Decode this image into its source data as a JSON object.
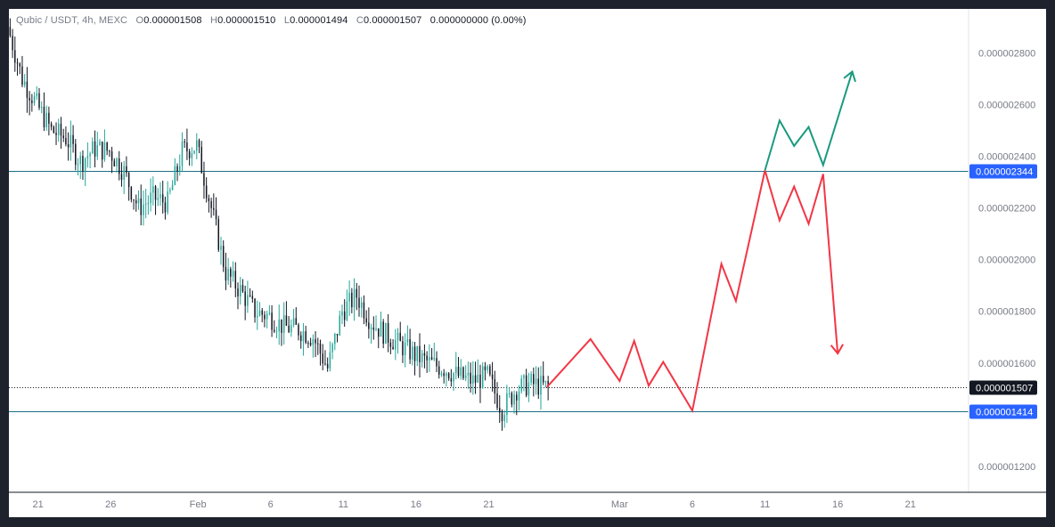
{
  "legend": {
    "symbol": "Qubic / USDT, 4h, MEXC",
    "o_key": "O",
    "o_val": "0.000001508",
    "h_key": "H",
    "h_val": "0.000001510",
    "l_key": "L",
    "l_val": "0.000001494",
    "c_key": "C",
    "c_val": "0.000001507",
    "change": "0.000000000 (0.00%)"
  },
  "colors": {
    "up": "#26a69a",
    "down": "#131722",
    "bullish_projection": "#1a9a7f",
    "bearish_projection": "#f23645",
    "level_line": "#1b6f86",
    "badge_blue": "#2962ff",
    "badge_dark": "#131722"
  },
  "chart_data": {
    "type": "candlestick",
    "pair": "Qubic / USDT",
    "timeframe": "4h",
    "exchange": "MEXC",
    "ylim": [
      1.1e-06,
      2.97e-06
    ],
    "y_ticks": [
      "0.000001200",
      "0.000001600",
      "0.000001800",
      "0.000002000",
      "0.000002200",
      "0.000002400",
      "0.000002600",
      "0.000002800"
    ],
    "y_tick_values": [
      1.2e-06,
      1.6e-06,
      1.8e-06,
      2e-06,
      2.2e-06,
      2.4e-06,
      2.6e-06,
      2.8e-06
    ],
    "x_ticks": [
      "21",
      "26",
      "Feb",
      "6",
      "11",
      "16",
      "21",
      "Mar",
      "6",
      "11",
      "16",
      "21"
    ],
    "x_tick_dates": [
      "2024-01-21",
      "2024-01-26",
      "2024-02-01",
      "2024-02-06",
      "2024-02-11",
      "2024-02-16",
      "2024-02-21",
      "2024-03-01",
      "2024-03-06",
      "2024-03-11",
      "2024-03-16",
      "2024-03-21"
    ],
    "x_range": [
      "2024-01-19",
      "2024-03-25"
    ],
    "price_path": [
      [
        "2024-01-19",
        2.9e-06
      ],
      [
        "2024-01-20",
        2.7e-06
      ],
      [
        "2024-01-21",
        2.6e-06
      ],
      [
        "2024-01-22",
        2.5e-06
      ],
      [
        "2024-01-23",
        2.47e-06
      ],
      [
        "2024-01-24",
        2.38e-06
      ],
      [
        "2024-01-25",
        2.43e-06
      ],
      [
        "2024-01-26",
        2.42e-06
      ],
      [
        "2024-01-27",
        2.34e-06
      ],
      [
        "2024-01-28",
        2.2e-06
      ],
      [
        "2024-01-29",
        2.24e-06
      ],
      [
        "2024-01-30",
        2.22e-06
      ],
      [
        "2024-01-31",
        2.42e-06
      ],
      [
        "2024-02-01",
        2.44e-06
      ],
      [
        "2024-02-02",
        2.2e-06
      ],
      [
        "2024-02-03",
        1.95e-06
      ],
      [
        "2024-02-04",
        1.88e-06
      ],
      [
        "2024-02-05",
        1.8e-06
      ],
      [
        "2024-02-06",
        1.78e-06
      ],
      [
        "2024-02-07",
        1.74e-06
      ],
      [
        "2024-02-08",
        1.73e-06
      ],
      [
        "2024-02-09",
        1.7e-06
      ],
      [
        "2024-02-10",
        1.58e-06
      ],
      [
        "2024-02-11",
        1.8e-06
      ],
      [
        "2024-02-12",
        1.86e-06
      ],
      [
        "2024-02-13",
        1.76e-06
      ],
      [
        "2024-02-14",
        1.71e-06
      ],
      [
        "2024-02-15",
        1.67e-06
      ],
      [
        "2024-02-16",
        1.63e-06
      ],
      [
        "2024-02-17",
        1.6e-06
      ],
      [
        "2024-02-18",
        1.58e-06
      ],
      [
        "2024-02-19",
        1.55e-06
      ],
      [
        "2024-02-20",
        1.53e-06
      ],
      [
        "2024-02-21",
        1.55e-06
      ],
      [
        "2024-02-22",
        1.42e-06
      ],
      [
        "2024-02-23",
        1.5e-06
      ],
      [
        "2024-02-24",
        1.52e-06
      ],
      [
        "2024-02-25",
        1.5075e-06
      ]
    ],
    "levels": [
      {
        "label": "0.000002344",
        "value": 2.344e-06,
        "style": "solid"
      },
      {
        "label": "0.000001414",
        "value": 1.414e-06,
        "style": "solid"
      },
      {
        "label": "0.000001507",
        "value": 1.507e-06,
        "style": "dotted"
      }
    ],
    "projections": [
      {
        "direction": "neutral-to-up",
        "color_key": "bearish_projection",
        "points": [
          [
            "2024-02-25",
            1.507e-06
          ],
          [
            "2024-02-28",
            1.6926e-06
          ],
          [
            "2024-03-01",
            1.5304e-06
          ],
          [
            "2024-03-02",
            1.6856e-06
          ],
          [
            "2024-03-03",
            1.5127e-06
          ],
          [
            "2024-03-04",
            1.6042e-06
          ],
          [
            "2024-03-06",
            1.4157e-06
          ],
          [
            "2024-03-08",
            1.9837e-06
          ],
          [
            "2024-03-09",
            1.8396e-06
          ],
          [
            "2024-03-11",
            2.3452e-06
          ]
        ]
      },
      {
        "direction": "bearish",
        "color_key": "bearish_projection",
        "arrow": true,
        "points": [
          [
            "2024-03-11",
            2.3452e-06
          ],
          [
            "2024-03-12",
            2.1522e-06
          ],
          [
            "2024-03-13",
            2.2827e-06
          ],
          [
            "2024-03-14",
            2.1386e-06
          ],
          [
            "2024-03-15",
            2.3313e-06
          ],
          [
            "2024-03-16",
            1.6368e-06
          ]
        ]
      },
      {
        "direction": "bullish",
        "color_key": "bullish_projection",
        "arrow": true,
        "points": [
          [
            "2024-03-11",
            2.3452e-06
          ],
          [
            "2024-03-12",
            2.5382e-06
          ],
          [
            "2024-03-13",
            2.4399e-06
          ],
          [
            "2024-03-14",
            2.513e-06
          ],
          [
            "2024-03-15",
            2.3658e-06
          ],
          [
            "2024-03-17",
            2.7275e-06
          ]
        ]
      }
    ]
  }
}
